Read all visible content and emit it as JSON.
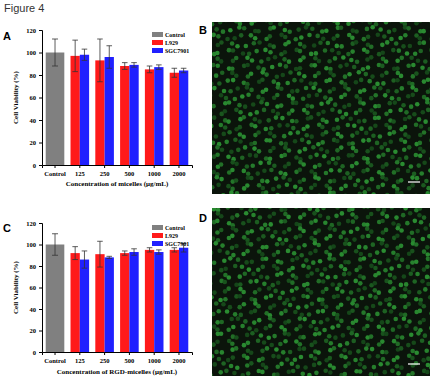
{
  "title": "Figure 4",
  "chart_data": [
    {
      "type": "bar",
      "label": "A",
      "x_label": "Concentration of micelles (μg/mL)",
      "y_label": "Cell Viability (%)",
      "categories": [
        "Control",
        "125",
        "250",
        "500",
        "1000",
        "2000"
      ],
      "series": [
        {
          "name": "Control",
          "color": "#808080",
          "values": [
            100,
            null,
            null,
            null,
            null,
            null
          ],
          "errors": [
            12,
            null,
            null,
            null,
            null,
            null
          ]
        },
        {
          "name": "L929",
          "color": "#ff1a1a",
          "values": [
            null,
            97,
            93,
            88,
            85,
            82
          ],
          "errors": [
            null,
            14,
            19,
            3,
            3,
            4
          ]
        },
        {
          "name": "SGC7901",
          "color": "#2020ff",
          "values": [
            null,
            98,
            96,
            89,
            87,
            84
          ],
          "errors": [
            null,
            5,
            10,
            2,
            2,
            2
          ]
        }
      ],
      "ylim": [
        0,
        120
      ],
      "yticks": [
        0,
        20,
        40,
        60,
        80,
        100,
        120
      ],
      "legend": "upper right"
    },
    {
      "type": "bar",
      "label": "C",
      "x_label": "Concentration of RGD-micelles (μg/mL)",
      "y_label": "Cell Viability (%)",
      "categories": [
        "Control",
        "125",
        "250",
        "500",
        "1000",
        "2000"
      ],
      "series": [
        {
          "name": "Control",
          "color": "#808080",
          "values": [
            100,
            null,
            null,
            null,
            null,
            null
          ],
          "errors": [
            10,
            null,
            null,
            null,
            null,
            null
          ]
        },
        {
          "name": "L929",
          "color": "#ff1a1a",
          "values": [
            null,
            92,
            91,
            92,
            95,
            95
          ],
          "errors": [
            null,
            6,
            12,
            2,
            2,
            2
          ]
        },
        {
          "name": "SGC7901",
          "color": "#2020ff",
          "values": [
            null,
            86,
            88,
            93,
            93,
            97
          ],
          "errors": [
            null,
            8,
            1,
            3,
            2,
            4
          ]
        }
      ],
      "ylim": [
        0,
        120
      ],
      "yticks": [
        0,
        20,
        40,
        60,
        80,
        100,
        120
      ],
      "legend": "upper right"
    }
  ],
  "images": [
    {
      "label": "B"
    },
    {
      "label": "D"
    }
  ]
}
